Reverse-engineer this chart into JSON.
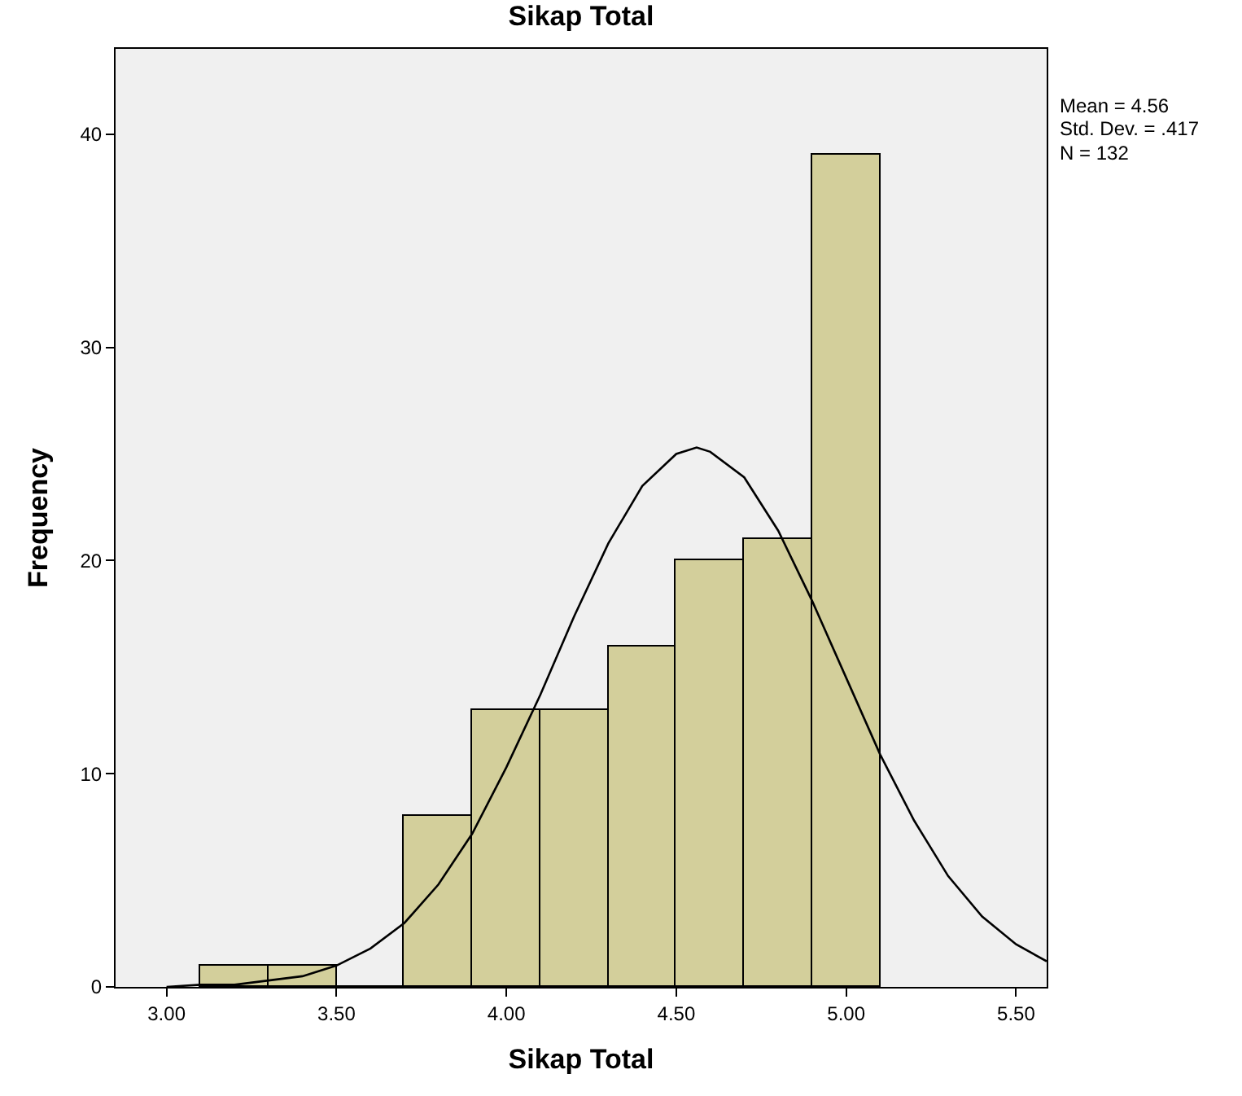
{
  "chart_data": {
    "type": "histogram",
    "title": "Sikap Total",
    "xlabel": "Sikap Total",
    "ylabel": "Frequency",
    "bins": [
      3.1,
      3.3,
      3.5,
      3.7,
      3.9,
      4.1,
      4.3,
      4.5,
      4.7,
      4.9,
      5.1
    ],
    "values": [
      1,
      1,
      0,
      8,
      13,
      13,
      16,
      20,
      21,
      39
    ],
    "color": "#d3cf9b",
    "series": [
      {
        "type": "line",
        "color": "#000000",
        "x": [
          3.0,
          3.1,
          3.2,
          3.3,
          3.4,
          3.5,
          3.6,
          3.7,
          3.8,
          3.9,
          4.0,
          4.1,
          4.2,
          4.3,
          4.4,
          4.5,
          4.56,
          4.6,
          4.7,
          4.8,
          4.9,
          5.0,
          5.1,
          5.2,
          5.3,
          5.4,
          5.5,
          5.59
        ],
        "values": [
          0.0,
          0.1,
          0.1,
          0.3,
          0.5,
          1.0,
          1.8,
          3.0,
          4.8,
          7.2,
          10.3,
          13.7,
          17.4,
          20.8,
          23.5,
          25.0,
          25.3,
          25.1,
          23.9,
          21.4,
          18.1,
          14.5,
          10.9,
          7.8,
          5.2,
          3.3,
          2.0,
          1.2
        ]
      }
    ],
    "xlim": [
      2.85,
      5.59
    ],
    "xticks": [
      {
        "value": 3.0,
        "label": "3.00"
      },
      {
        "value": 3.5,
        "label": "3.50"
      },
      {
        "value": 4.0,
        "label": "4.00"
      },
      {
        "value": 4.5,
        "label": "4.50"
      },
      {
        "value": 5.0,
        "label": "5.00"
      },
      {
        "value": 5.5,
        "label": "5.50"
      }
    ],
    "ylim": [
      0,
      44
    ],
    "yticks": [
      0,
      10,
      20,
      30,
      40
    ],
    "grid": false,
    "line_style": "solid",
    "annotations": [
      "Mean = 4.56",
      "Std. Dev. = .417",
      "N = 132"
    ]
  }
}
